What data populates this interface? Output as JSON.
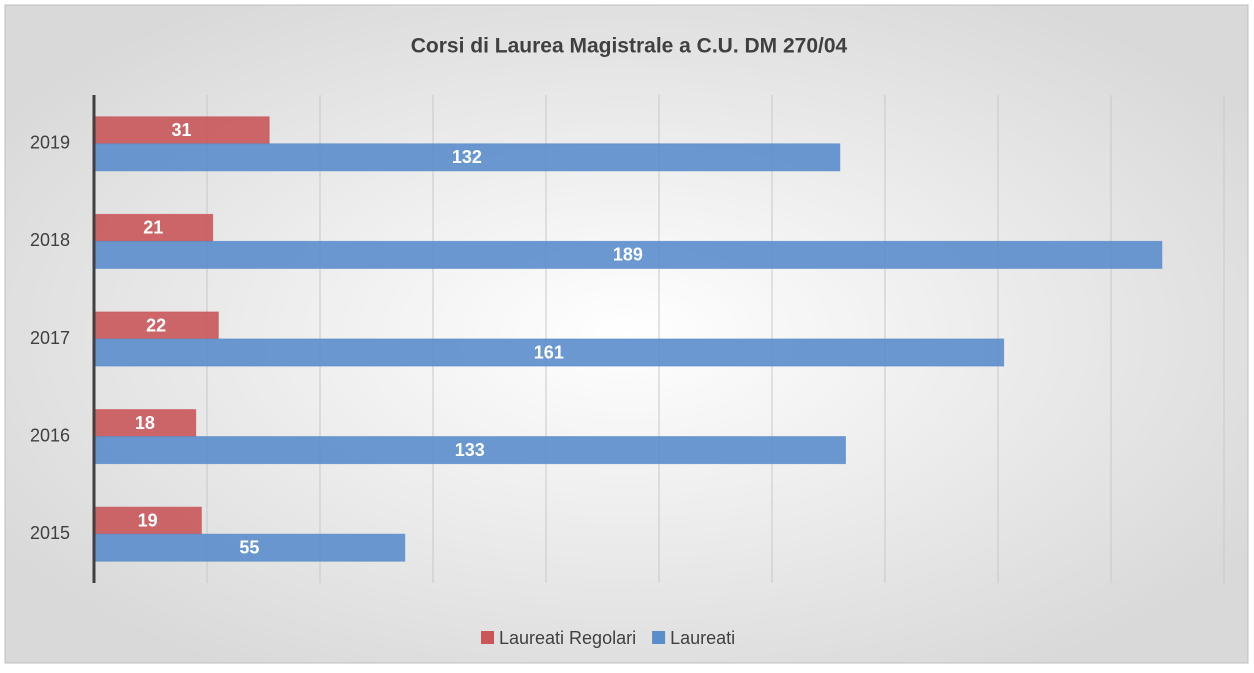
{
  "chart_data": {
    "type": "hbar",
    "title": "Corsi di Laurea Magistrale a C.U. DM 270/04",
    "categories": [
      "2015",
      "2016",
      "2017",
      "2018",
      "2019"
    ],
    "series": [
      {
        "name": "Laureati Regolari",
        "color": "#c9575a",
        "values": [
          19,
          18,
          22,
          21,
          31
        ]
      },
      {
        "name": "Laureati",
        "color": "#5b8dcb",
        "values": [
          55,
          133,
          161,
          189,
          132
        ]
      }
    ],
    "xlim": [
      0,
      200
    ],
    "xticks": [
      0,
      20,
      40,
      60,
      80,
      100,
      120,
      140,
      160,
      180,
      200
    ],
    "grid": true,
    "legend": "bottom"
  }
}
